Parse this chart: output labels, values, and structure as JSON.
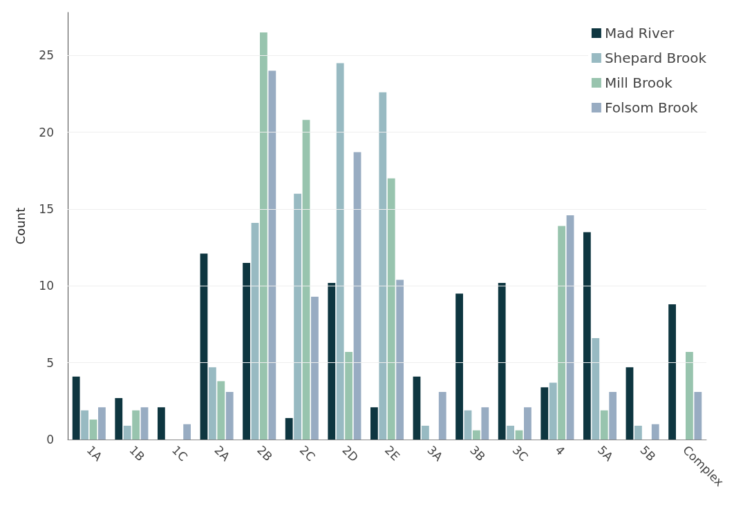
{
  "chart_data": {
    "type": "bar",
    "ylabel": "Count",
    "categories": [
      "1A",
      "1B",
      "1C",
      "2A",
      "2B",
      "2C",
      "2D",
      "2E",
      "3A",
      "3B",
      "3C",
      "4",
      "5A",
      "5B",
      "Complex"
    ],
    "series": [
      {
        "name": "Mad River",
        "color": "#0e3640",
        "values": [
          4.1,
          2.7,
          2.1,
          12.1,
          11.5,
          1.4,
          10.2,
          2.1,
          4.1,
          9.5,
          10.2,
          3.4,
          13.5,
          4.7,
          8.8
        ]
      },
      {
        "name": "Shepard Brook",
        "color": "#98bac2",
        "values": [
          1.9,
          0.9,
          0,
          4.7,
          14.1,
          16.0,
          24.5,
          22.6,
          0.9,
          1.9,
          0.9,
          3.7,
          6.6,
          0.9,
          0
        ]
      },
      {
        "name": "Mill Brook",
        "color": "#98c4ae",
        "values": [
          1.3,
          1.9,
          0,
          3.8,
          26.5,
          20.8,
          5.7,
          17.0,
          0,
          0.6,
          0.6,
          13.9,
          1.9,
          0,
          5.7
        ]
      },
      {
        "name": "Folsom Brook",
        "color": "#98acc2",
        "values": [
          2.1,
          2.1,
          1.0,
          3.1,
          24.0,
          9.3,
          18.7,
          10.4,
          3.1,
          2.1,
          2.1,
          14.6,
          3.1,
          1.0,
          3.1
        ]
      }
    ],
    "ylim": [
      0,
      27.8
    ],
    "yticks": [
      0,
      5,
      10,
      15,
      20,
      25
    ],
    "grid": "y",
    "legend": "top right"
  }
}
